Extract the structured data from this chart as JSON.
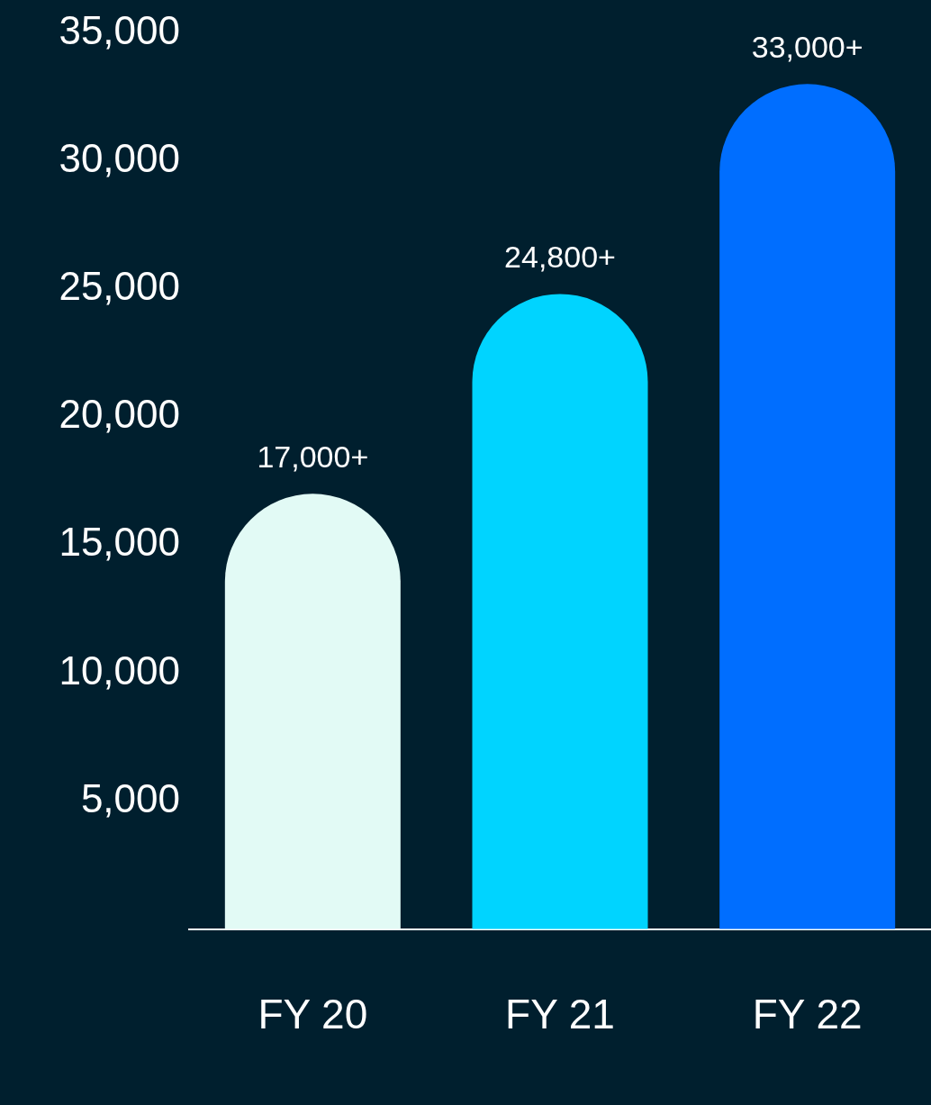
{
  "chart_data": {
    "type": "bar",
    "categories": [
      "FY 20",
      "FY 21",
      "FY 22"
    ],
    "values": [
      17000,
      24800,
      33000
    ],
    "colors": [
      "#e2faf5",
      "#00d4ff",
      "#006eff"
    ],
    "value_labels": [
      "17,000+",
      "24,800+",
      "33,000+"
    ],
    "ylim": [
      0,
      35000
    ],
    "yticks": [
      {
        "value": 5000,
        "label": "5,000"
      },
      {
        "value": 10000,
        "label": "10,000"
      },
      {
        "value": 15000,
        "label": "15,000"
      },
      {
        "value": 20000,
        "label": "20,000"
      },
      {
        "value": 25000,
        "label": "25,000"
      },
      {
        "value": 30000,
        "label": "30,000"
      },
      {
        "value": 35000,
        "label": "35,000"
      }
    ]
  }
}
